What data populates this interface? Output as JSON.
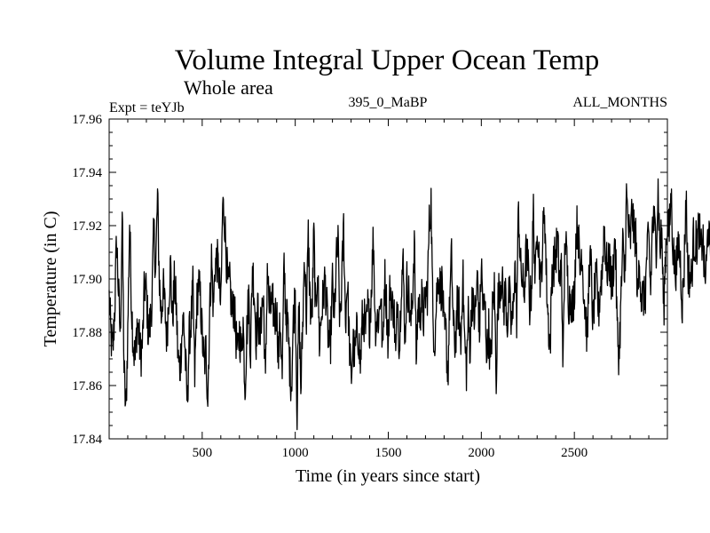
{
  "chart_data": {
    "type": "line",
    "title": "Volume Integral Upper Ocean Temp",
    "subtitle": "Whole area",
    "annotations": {
      "left": "Expt = teYJb",
      "center": "395_0_MaBP",
      "right": "ALL_MONTHS"
    },
    "xlabel": "Time (in years since start)",
    "ylabel": "Temperature (in C)",
    "xlim": [
      0,
      3000
    ],
    "ylim": [
      17.84,
      17.96
    ],
    "xticks": [
      500,
      1000,
      1500,
      2000,
      2500
    ],
    "yticks": [
      17.84,
      17.86,
      17.88,
      17.9,
      17.92,
      17.94,
      17.96
    ],
    "ytick_labels": [
      "17.84",
      "17.86",
      "17.88",
      "17.90",
      "17.92",
      "17.94",
      "17.96"
    ],
    "grid": false,
    "series": [
      {
        "name": "Volume Integral Upper Ocean Temp",
        "color": "#000000",
        "x_start": 0,
        "x_step": 10,
        "values": [
          17.893,
          17.878,
          17.873,
          17.889,
          17.915,
          17.896,
          17.878,
          17.925,
          17.866,
          17.849,
          17.88,
          17.922,
          17.891,
          17.875,
          17.869,
          17.884,
          17.878,
          17.871,
          17.877,
          17.898,
          17.895,
          17.88,
          17.883,
          17.893,
          17.919,
          17.903,
          17.931,
          17.899,
          17.886,
          17.897,
          17.889,
          17.877,
          17.894,
          17.905,
          17.884,
          17.898,
          17.891,
          17.87,
          17.866,
          17.878,
          17.886,
          17.869,
          17.853,
          17.878,
          17.884,
          17.896,
          17.863,
          17.889,
          17.899,
          17.892,
          17.879,
          17.867,
          17.874,
          17.855,
          17.887,
          17.908,
          17.889,
          17.906,
          17.907,
          17.902,
          17.888,
          17.928,
          17.923,
          17.908,
          17.896,
          17.898,
          17.886,
          17.891,
          17.88,
          17.871,
          17.88,
          17.873,
          17.884,
          17.859,
          17.88,
          17.894,
          17.872,
          17.905,
          17.895,
          17.878,
          17.889,
          17.875,
          17.89,
          17.891,
          17.86,
          17.905,
          17.889,
          17.889,
          17.89,
          17.885,
          17.889,
          17.87,
          17.885,
          17.863,
          17.905,
          17.887,
          17.882,
          17.868,
          17.86,
          17.885,
          17.894,
          17.85,
          17.891,
          17.858,
          17.882,
          17.911,
          17.885,
          17.916,
          17.891,
          17.884,
          17.918,
          17.885,
          17.906,
          17.876,
          17.886,
          17.893,
          17.9,
          17.888,
          17.875,
          17.877,
          17.899,
          17.883,
          17.906,
          17.913,
          17.882,
          17.898,
          17.92,
          17.884,
          17.9,
          17.878,
          17.861,
          17.876,
          17.871,
          17.879,
          17.879,
          17.867,
          17.884,
          17.885,
          17.88,
          17.889,
          17.883,
          17.898,
          17.917,
          17.883,
          17.885,
          17.886,
          17.896,
          17.87,
          17.902,
          17.891,
          17.875,
          17.899,
          17.889,
          17.89,
          17.87,
          17.894,
          17.873,
          17.9,
          17.905,
          17.878,
          17.899,
          17.894,
          17.882,
          17.893,
          17.915,
          17.87,
          17.891,
          17.887,
          17.892,
          17.885,
          17.894,
          17.895,
          17.92,
          17.929,
          17.884,
          17.877,
          17.894,
          17.902,
          17.896,
          17.898,
          17.879,
          17.88,
          17.862,
          17.891,
          17.908,
          17.881,
          17.875,
          17.889,
          17.889,
          17.874,
          17.904,
          17.877,
          17.866,
          17.886,
          17.874,
          17.895,
          17.885,
          17.889,
          17.901,
          17.879,
          17.906,
          17.888,
          17.89,
          17.872,
          17.881,
          17.865,
          17.888,
          17.896,
          17.864,
          17.892,
          17.898,
          17.901,
          17.889,
          17.895,
          17.883,
          17.895,
          17.883,
          17.885,
          17.907,
          17.886,
          17.928,
          17.904,
          17.9,
          17.894,
          17.909,
          17.907,
          17.89,
          17.897,
          17.926,
          17.897,
          17.924,
          17.909,
          17.897,
          17.915,
          17.927,
          17.9,
          17.884,
          17.874,
          17.903,
          17.906,
          17.909,
          17.915,
          17.898,
          17.905,
          17.868,
          17.917,
          17.906,
          17.891,
          17.894,
          17.889,
          17.895,
          17.919,
          17.92,
          17.901,
          17.912,
          17.896,
          17.887,
          17.877,
          17.906,
          17.904,
          17.883,
          17.896,
          17.899,
          17.887,
          17.898,
          17.903,
          17.921,
          17.907,
          17.903,
          17.907,
          17.896,
          17.905,
          17.916,
          17.881,
          17.871,
          17.89,
          17.913,
          17.899,
          17.931,
          17.92,
          17.912,
          17.927,
          17.917,
          17.917,
          17.892,
          17.909,
          17.892,
          17.894,
          17.891,
          17.91,
          17.914,
          17.895,
          17.922,
          17.92,
          17.913,
          17.934,
          17.911,
          17.917,
          17.887,
          17.91,
          17.922,
          17.917,
          17.932,
          17.912,
          17.904,
          17.905,
          17.914,
          17.906,
          17.89,
          17.904,
          17.932,
          17.903,
          17.901,
          17.9,
          17.915,
          17.913,
          17.914,
          17.92,
          17.909,
          17.917,
          17.9,
          17.904,
          17.923,
          17.905,
          17.935,
          17.925,
          17.9,
          17.913,
          17.922,
          17.896,
          17.907,
          17.91,
          17.885,
          17.925,
          17.915,
          17.915,
          17.917,
          17.891,
          17.882,
          17.912,
          17.906,
          17.904,
          17.916,
          17.904,
          17.897,
          17.912,
          17.896,
          17.889,
          17.908,
          17.893,
          17.92,
          17.884,
          17.916,
          17.919,
          17.9,
          17.911,
          17.914,
          17.903,
          17.915,
          17.896,
          17.921,
          17.921,
          17.915,
          17.915,
          17.914,
          17.906,
          17.896,
          17.904,
          17.92,
          17.923,
          17.904,
          17.908,
          17.912,
          17.895,
          17.919,
          17.909,
          17.928,
          17.917,
          17.898,
          17.924,
          17.94,
          17.917,
          17.896,
          17.919,
          17.9,
          17.941,
          17.913,
          17.924,
          17.905,
          17.912,
          17.913,
          17.913,
          17.899,
          17.919,
          17.922,
          17.914,
          17.934,
          17.908,
          17.921,
          17.926,
          17.928,
          17.919,
          17.909,
          17.907,
          17.895,
          17.919,
          17.904,
          17.9,
          17.914,
          17.925,
          17.914,
          17.9,
          17.908,
          17.892,
          17.914,
          17.917,
          17.932,
          17.935,
          17.948,
          17.928,
          17.91,
          17.922,
          17.924,
          17.903,
          17.918,
          17.916,
          17.914,
          17.921,
          17.932,
          17.92,
          17.947,
          17.936,
          17.939,
          17.926,
          17.906,
          17.92,
          17.924,
          17.935,
          17.918,
          17.917,
          17.926,
          17.898,
          17.905,
          17.922,
          17.913,
          17.907,
          17.913,
          17.907,
          17.92,
          17.905,
          17.902,
          17.884,
          17.895,
          17.904,
          17.91,
          17.898,
          17.9,
          17.921,
          17.899,
          17.892,
          17.898,
          17.904,
          17.921,
          17.897,
          17.886,
          17.896,
          17.895,
          17.883,
          17.867,
          17.9
        ],
        "note": "smoothed representation of the plotted record; trace drawn with raster noise on top"
      }
    ]
  }
}
